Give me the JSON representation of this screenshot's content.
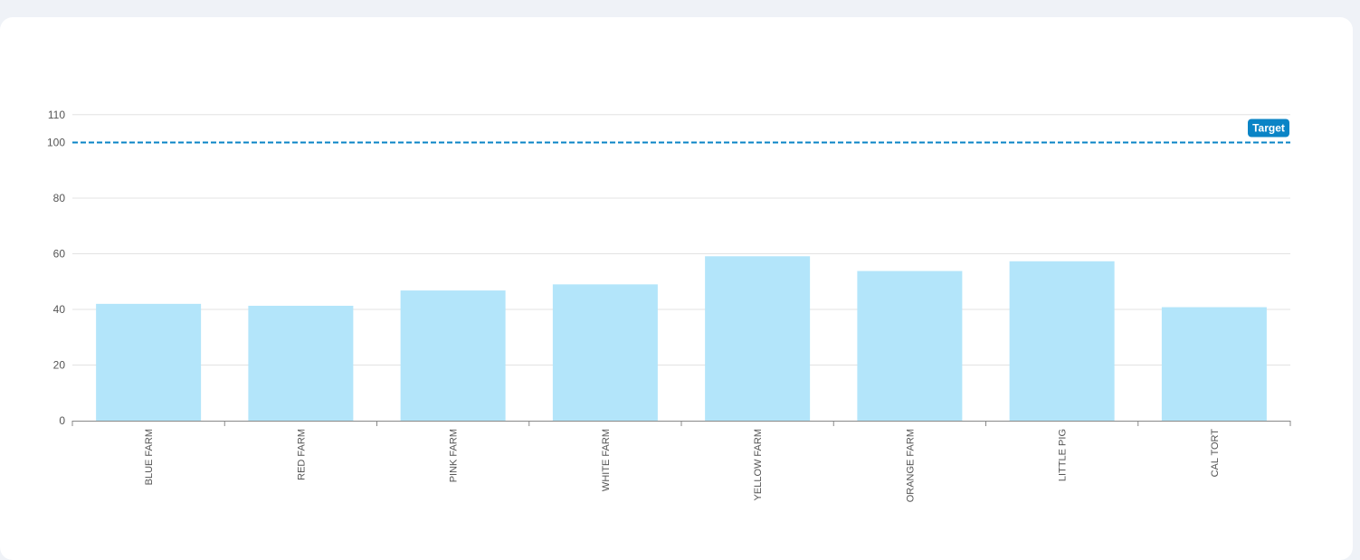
{
  "chart_data": {
    "type": "bar",
    "categories": [
      "BLUE FARM",
      "RED FARM",
      "PINK FARM",
      "WHITE FARM",
      "YELLOW FARM",
      "ORANGE FARM",
      "LITTLE PIG",
      "CAL TORT"
    ],
    "values": [
      42,
      41.3,
      46.8,
      49,
      59.1,
      53.8,
      57.3,
      40.8
    ],
    "ylim": [
      0,
      110
    ],
    "yticks": [
      0,
      20,
      40,
      60,
      80,
      100,
      110
    ],
    "grid": true,
    "target": {
      "value": 100,
      "label": "Target",
      "color": "#0a84c6"
    },
    "colors": {
      "bar": "#b3e5fa",
      "grid": "#e3e3e3",
      "axis": "#888888"
    }
  }
}
